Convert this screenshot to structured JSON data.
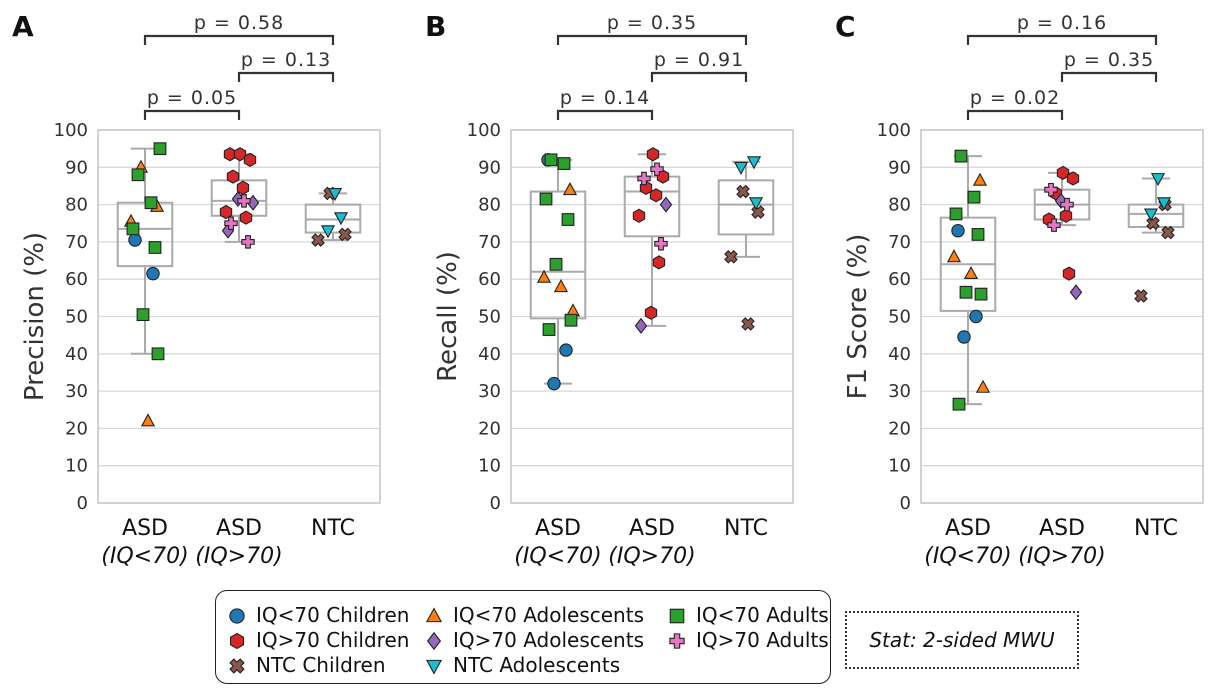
{
  "colors": {
    "IQ<70 Children": "#1f77b4",
    "IQ>70 Children": "#d62728",
    "NTC Children": "#8c564b",
    "IQ<70 Adolescents": "#ff7f0e",
    "IQ>70 Adolescents": "#9467bd",
    "NTC Adolescents": "#17becf",
    "IQ<70 Adults": "#2ca02c",
    "IQ>70 Adults": "#e377c2"
  },
  "markers": {
    "IQ<70 Children": "circle",
    "IQ>70 Children": "hexagon",
    "NTC Children": "x",
    "IQ<70 Adolescents": "triangle-up",
    "IQ>70 Adolescents": "diamond",
    "NTC Adolescents": "triangle-down",
    "IQ<70 Adults": "square",
    "IQ>70 Adults": "plus"
  },
  "legend": {
    "items": [
      "IQ<70 Children",
      "IQ>70 Children",
      "NTC Children",
      "IQ<70 Adolescents",
      "IQ>70 Adolescents",
      "NTC Adolescents",
      "IQ<70 Adults",
      "IQ>70 Adults"
    ],
    "stat_text": "Stat: 2-sided MWU"
  },
  "chart_data": [
    {
      "type": "box",
      "panel_label": "A",
      "ylabel": "Precision (%)",
      "ylim": [
        0,
        100
      ],
      "yticks": [
        0,
        10,
        20,
        30,
        40,
        50,
        60,
        70,
        80,
        90,
        100
      ],
      "grid": true,
      "categories": [
        [
          "ASD",
          "(IQ<70)"
        ],
        [
          "ASD",
          "(IQ>70)"
        ],
        [
          "NTC",
          ""
        ]
      ],
      "boxes": [
        {
          "low": 40,
          "q1": 63.5,
          "median": 73.5,
          "q3": 80.5,
          "high": 95
        },
        {
          "low": 70,
          "q1": 77,
          "median": 81,
          "q3": 86.5,
          "high": 93.5
        },
        {
          "low": 70.5,
          "q1": 72.5,
          "median": 76,
          "q3": 80,
          "high": 83
        }
      ],
      "brackets": [
        {
          "from": 0,
          "to": 1,
          "label": "p = 0.05"
        },
        {
          "from": 1,
          "to": 2,
          "label": "p = 0.13"
        },
        {
          "from": 0,
          "to": 2,
          "label": "p = 0.58"
        }
      ],
      "points": [
        {
          "cat": 0,
          "group": "IQ<70 Children",
          "y": 70.5
        },
        {
          "cat": 0,
          "group": "IQ<70 Children",
          "y": 61.5
        },
        {
          "cat": 0,
          "group": "IQ<70 Adolescents",
          "y": 90
        },
        {
          "cat": 0,
          "group": "IQ<70 Adolescents",
          "y": 79.5
        },
        {
          "cat": 0,
          "group": "IQ<70 Adolescents",
          "y": 75.5
        },
        {
          "cat": 0,
          "group": "IQ<70 Adolescents",
          "y": 22
        },
        {
          "cat": 0,
          "group": "IQ<70 Adults",
          "y": 95
        },
        {
          "cat": 0,
          "group": "IQ<70 Adults",
          "y": 88
        },
        {
          "cat": 0,
          "group": "IQ<70 Adults",
          "y": 80.5
        },
        {
          "cat": 0,
          "group": "IQ<70 Adults",
          "y": 73.5
        },
        {
          "cat": 0,
          "group": "IQ<70 Adults",
          "y": 68.5
        },
        {
          "cat": 0,
          "group": "IQ<70 Adults",
          "y": 50.5
        },
        {
          "cat": 0,
          "group": "IQ<70 Adults",
          "y": 40
        },
        {
          "cat": 1,
          "group": "IQ>70 Children",
          "y": 93.5
        },
        {
          "cat": 1,
          "group": "IQ>70 Children",
          "y": 93.5
        },
        {
          "cat": 1,
          "group": "IQ>70 Children",
          "y": 92
        },
        {
          "cat": 1,
          "group": "IQ>70 Children",
          "y": 87.5
        },
        {
          "cat": 1,
          "group": "IQ>70 Children",
          "y": 84.5
        },
        {
          "cat": 1,
          "group": "IQ>70 Children",
          "y": 78
        },
        {
          "cat": 1,
          "group": "IQ>70 Children",
          "y": 76.5
        },
        {
          "cat": 1,
          "group": "IQ>70 Adolescents",
          "y": 81.5
        },
        {
          "cat": 1,
          "group": "IQ>70 Adolescents",
          "y": 80.5
        },
        {
          "cat": 1,
          "group": "IQ>70 Adolescents",
          "y": 73
        },
        {
          "cat": 1,
          "group": "IQ>70 Adults",
          "y": 81
        },
        {
          "cat": 1,
          "group": "IQ>70 Adults",
          "y": 75
        },
        {
          "cat": 1,
          "group": "IQ>70 Adults",
          "y": 70
        },
        {
          "cat": 2,
          "group": "NTC Children",
          "y": 83
        },
        {
          "cat": 2,
          "group": "NTC Children",
          "y": 72
        },
        {
          "cat": 2,
          "group": "NTC Children",
          "y": 70.5
        },
        {
          "cat": 2,
          "group": "NTC Adolescents",
          "y": 83
        },
        {
          "cat": 2,
          "group": "NTC Adolescents",
          "y": 76.5
        },
        {
          "cat": 2,
          "group": "NTC Adolescents",
          "y": 73
        }
      ]
    },
    {
      "type": "box",
      "panel_label": "B",
      "ylabel": "Recall (%)",
      "ylim": [
        0,
        100
      ],
      "yticks": [
        0,
        10,
        20,
        30,
        40,
        50,
        60,
        70,
        80,
        90,
        100
      ],
      "grid": true,
      "categories": [
        [
          "ASD",
          "(IQ<70)"
        ],
        [
          "ASD",
          "(IQ>70)"
        ],
        [
          "NTC",
          ""
        ]
      ],
      "boxes": [
        {
          "low": 32,
          "q1": 49.5,
          "median": 62,
          "q3": 83.5,
          "high": 92
        },
        {
          "low": 47.5,
          "q1": 71.5,
          "median": 83.5,
          "q3": 87.5,
          "high": 93.5
        },
        {
          "low": 66,
          "q1": 72,
          "median": 80,
          "q3": 86.5,
          "high": 91.5
        }
      ],
      "brackets": [
        {
          "from": 0,
          "to": 1,
          "label": "p = 0.14"
        },
        {
          "from": 1,
          "to": 2,
          "label": "p = 0.91"
        },
        {
          "from": 0,
          "to": 2,
          "label": "p = 0.35"
        }
      ],
      "points": [
        {
          "cat": 0,
          "group": "IQ<70 Children",
          "y": 92
        },
        {
          "cat": 0,
          "group": "IQ<70 Children",
          "y": 41
        },
        {
          "cat": 0,
          "group": "IQ<70 Children",
          "y": 32
        },
        {
          "cat": 0,
          "group": "IQ<70 Adolescents",
          "y": 84
        },
        {
          "cat": 0,
          "group": "IQ<70 Adolescents",
          "y": 60.5
        },
        {
          "cat": 0,
          "group": "IQ<70 Adolescents",
          "y": 58
        },
        {
          "cat": 0,
          "group": "IQ<70 Adolescents",
          "y": 51.5
        },
        {
          "cat": 0,
          "group": "IQ<70 Adults",
          "y": 92
        },
        {
          "cat": 0,
          "group": "IQ<70 Adults",
          "y": 91
        },
        {
          "cat": 0,
          "group": "IQ<70 Adults",
          "y": 81.5
        },
        {
          "cat": 0,
          "group": "IQ<70 Adults",
          "y": 76
        },
        {
          "cat": 0,
          "group": "IQ<70 Adults",
          "y": 64
        },
        {
          "cat": 0,
          "group": "IQ<70 Adults",
          "y": 49
        },
        {
          "cat": 0,
          "group": "IQ<70 Adults",
          "y": 46.5
        },
        {
          "cat": 1,
          "group": "IQ>70 Children",
          "y": 93.5
        },
        {
          "cat": 1,
          "group": "IQ>70 Children",
          "y": 87.5
        },
        {
          "cat": 1,
          "group": "IQ>70 Children",
          "y": 84.5
        },
        {
          "cat": 1,
          "group": "IQ>70 Children",
          "y": 82.5
        },
        {
          "cat": 1,
          "group": "IQ>70 Children",
          "y": 77
        },
        {
          "cat": 1,
          "group": "IQ>70 Children",
          "y": 64.5
        },
        {
          "cat": 1,
          "group": "IQ>70 Children",
          "y": 51
        },
        {
          "cat": 1,
          "group": "IQ>70 Adolescents",
          "y": 80
        },
        {
          "cat": 1,
          "group": "IQ>70 Adolescents",
          "y": 47.5
        },
        {
          "cat": 1,
          "group": "IQ>70 Adults",
          "y": 89.5
        },
        {
          "cat": 1,
          "group": "IQ>70 Adults",
          "y": 87
        },
        {
          "cat": 1,
          "group": "IQ>70 Adults",
          "y": 69.5
        },
        {
          "cat": 2,
          "group": "NTC Children",
          "y": 83.5
        },
        {
          "cat": 2,
          "group": "NTC Children",
          "y": 78
        },
        {
          "cat": 2,
          "group": "NTC Children",
          "y": 66
        },
        {
          "cat": 2,
          "group": "NTC Children",
          "y": 48
        },
        {
          "cat": 2,
          "group": "NTC Adolescents",
          "y": 91.5
        },
        {
          "cat": 2,
          "group": "NTC Adolescents",
          "y": 90
        },
        {
          "cat": 2,
          "group": "NTC Adolescents",
          "y": 80.5
        }
      ]
    },
    {
      "type": "box",
      "panel_label": "C",
      "ylabel": "F1 Score (%)",
      "ylim": [
        0,
        100
      ],
      "yticks": [
        0,
        10,
        20,
        30,
        40,
        50,
        60,
        70,
        80,
        90,
        100
      ],
      "grid": true,
      "categories": [
        [
          "ASD",
          "(IQ<70)"
        ],
        [
          "ASD",
          "(IQ>70)"
        ],
        [
          "NTC",
          ""
        ]
      ],
      "boxes": [
        {
          "low": 26.5,
          "q1": 51.5,
          "median": 64,
          "q3": 76.5,
          "high": 93
        },
        {
          "low": 74.5,
          "q1": 76,
          "median": 80,
          "q3": 84,
          "high": 88.5
        },
        {
          "low": 72.5,
          "q1": 74,
          "median": 77.5,
          "q3": 80,
          "high": 87
        }
      ],
      "brackets": [
        {
          "from": 0,
          "to": 1,
          "label": "p = 0.02"
        },
        {
          "from": 1,
          "to": 2,
          "label": "p = 0.35"
        },
        {
          "from": 0,
          "to": 2,
          "label": "p = 0.16"
        }
      ],
      "points": [
        {
          "cat": 0,
          "group": "IQ<70 Children",
          "y": 73
        },
        {
          "cat": 0,
          "group": "IQ<70 Children",
          "y": 50
        },
        {
          "cat": 0,
          "group": "IQ<70 Children",
          "y": 44.5
        },
        {
          "cat": 0,
          "group": "IQ<70 Adolescents",
          "y": 86.5
        },
        {
          "cat": 0,
          "group": "IQ<70 Adolescents",
          "y": 66
        },
        {
          "cat": 0,
          "group": "IQ<70 Adolescents",
          "y": 61.5
        },
        {
          "cat": 0,
          "group": "IQ<70 Adolescents",
          "y": 31
        },
        {
          "cat": 0,
          "group": "IQ<70 Adults",
          "y": 93
        },
        {
          "cat": 0,
          "group": "IQ<70 Adults",
          "y": 82
        },
        {
          "cat": 0,
          "group": "IQ<70 Adults",
          "y": 77.5
        },
        {
          "cat": 0,
          "group": "IQ<70 Adults",
          "y": 72
        },
        {
          "cat": 0,
          "group": "IQ<70 Adults",
          "y": 56.5
        },
        {
          "cat": 0,
          "group": "IQ<70 Adults",
          "y": 56
        },
        {
          "cat": 0,
          "group": "IQ<70 Adults",
          "y": 26.5
        },
        {
          "cat": 1,
          "group": "IQ>70 Children",
          "y": 88.5
        },
        {
          "cat": 1,
          "group": "IQ>70 Children",
          "y": 87
        },
        {
          "cat": 1,
          "group": "IQ>70 Children",
          "y": 83
        },
        {
          "cat": 1,
          "group": "IQ>70 Children",
          "y": 77
        },
        {
          "cat": 1,
          "group": "IQ>70 Children",
          "y": 76
        },
        {
          "cat": 1,
          "group": "IQ>70 Children",
          "y": 61.5
        },
        {
          "cat": 1,
          "group": "IQ>70 Adolescents",
          "y": 81
        },
        {
          "cat": 1,
          "group": "IQ>70 Adolescents",
          "y": 56.5
        },
        {
          "cat": 1,
          "group": "IQ>70 Adults",
          "y": 84
        },
        {
          "cat": 1,
          "group": "IQ>70 Adults",
          "y": 80
        },
        {
          "cat": 1,
          "group": "IQ>70 Adults",
          "y": 74.5
        },
        {
          "cat": 2,
          "group": "NTC Children",
          "y": 80
        },
        {
          "cat": 2,
          "group": "NTC Children",
          "y": 75
        },
        {
          "cat": 2,
          "group": "NTC Children",
          "y": 72.5
        },
        {
          "cat": 2,
          "group": "NTC Children",
          "y": 55.5
        },
        {
          "cat": 2,
          "group": "NTC Adolescents",
          "y": 87
        },
        {
          "cat": 2,
          "group": "NTC Adolescents",
          "y": 80.5
        },
        {
          "cat": 2,
          "group": "NTC Adolescents",
          "y": 77.5
        }
      ]
    }
  ]
}
